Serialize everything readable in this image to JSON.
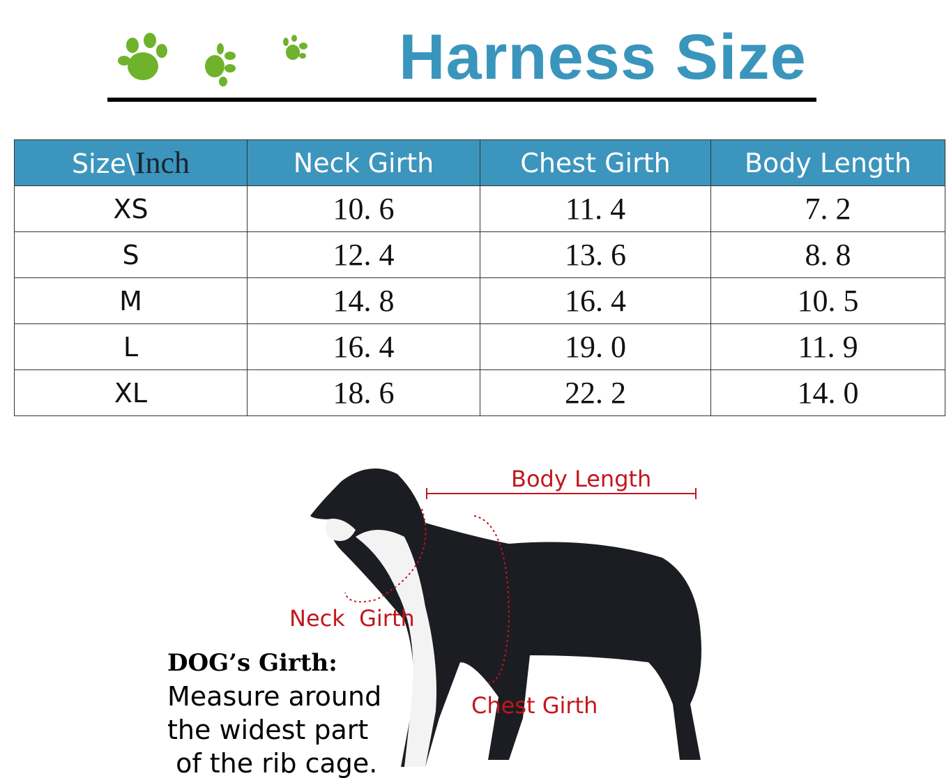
{
  "header": {
    "title": "Harness Size",
    "paw_icon_color": "#6fb22c",
    "title_color": "#3a95bd"
  },
  "table": {
    "header_color": "#3c95bd",
    "corner": {
      "size": "Size\\",
      "unit": "Inch"
    },
    "columns": [
      "Neck Girth",
      "Chest Girth",
      "Body Length"
    ],
    "rows": [
      {
        "size": "XS",
        "values": [
          "10. 6",
          "11. 4",
          "7. 2"
        ]
      },
      {
        "size": "S",
        "values": [
          "12. 4",
          "13. 6",
          "8. 8"
        ]
      },
      {
        "size": "M",
        "values": [
          "14. 8",
          "16. 4",
          "10. 5"
        ]
      },
      {
        "size": "L",
        "values": [
          "16. 4",
          "19. 0",
          "11. 9"
        ]
      },
      {
        "size": "XL",
        "values": [
          "18. 6",
          "22. 2",
          "14. 0"
        ]
      }
    ]
  },
  "diagram": {
    "body_length_label": "Body Length",
    "neck_girth_label": "Neck  Girth",
    "chest_girth_label": "Chest Girth",
    "annotation_color": "#c2161d",
    "note": {
      "heading": "DOG’s Girth:",
      "lines": [
        "Measure around",
        "the widest part",
        " of the rib cage."
      ]
    }
  }
}
